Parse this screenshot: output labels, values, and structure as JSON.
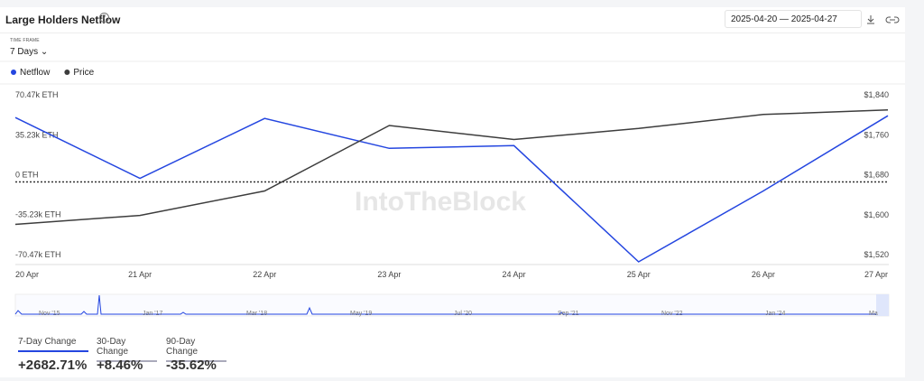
{
  "header": {
    "title": "Large Holders Netflow",
    "start_date": "2025-04-20",
    "end_date": "2025-04-27",
    "time_frame_label": "TIME FRAME",
    "time_frame": "7 Days"
  },
  "watermark": "IntoTheBlock",
  "chart_data": {
    "type": "line",
    "categories": [
      "20 Apr",
      "21 Apr",
      "22 Apr",
      "23 Apr",
      "24 Apr",
      "25 Apr",
      "26 Apr",
      "27 Apr"
    ],
    "series": [
      {
        "name": "Netflow",
        "color": "#2446e0",
        "values": [
          56800,
          3200,
          56000,
          29600,
          32000,
          -70470,
          -8000,
          58400
        ]
      },
      {
        "name": "Price",
        "color": "#3d3d3d",
        "axis": "y2",
        "values": [
          1595,
          1613,
          1662,
          1793,
          1765,
          1787,
          1815,
          1824
        ]
      }
    ],
    "ylim": [
      -70470,
      70470
    ],
    "yticks": [
      {
        "value": 70470,
        "label": "70.47k ETH"
      },
      {
        "value": 35230,
        "label": "35.23k ETH"
      },
      {
        "value": 0,
        "label": "0 ETH"
      },
      {
        "value": -35230,
        "label": "-35.23k ETH"
      },
      {
        "value": -70470,
        "label": "-70.47k ETH"
      }
    ],
    "y2lim": [
      1520,
      1840
    ],
    "y2ticks": [
      {
        "value": 1840,
        "label": "$1,840"
      },
      {
        "value": 1760,
        "label": "$1,760"
      },
      {
        "value": 1680,
        "label": "$1,680"
      },
      {
        "value": 1600,
        "label": "$1,600"
      },
      {
        "value": 1520,
        "label": "$1,520"
      }
    ],
    "grid": false,
    "zero_line": true
  },
  "navigator": {
    "labels": [
      "Nov '15",
      "Jan '17",
      "Mar '18",
      "May '19",
      "Jul '20",
      "Sep '21",
      "Nov '22",
      "Jan '24",
      "Ma"
    ]
  },
  "stats": [
    {
      "label": "7-Day Change",
      "value": "+2682.71%"
    },
    {
      "label": "30-Day Change",
      "value": "+8.46%"
    },
    {
      "label": "90-Day Change",
      "value": "-35.62%"
    }
  ]
}
